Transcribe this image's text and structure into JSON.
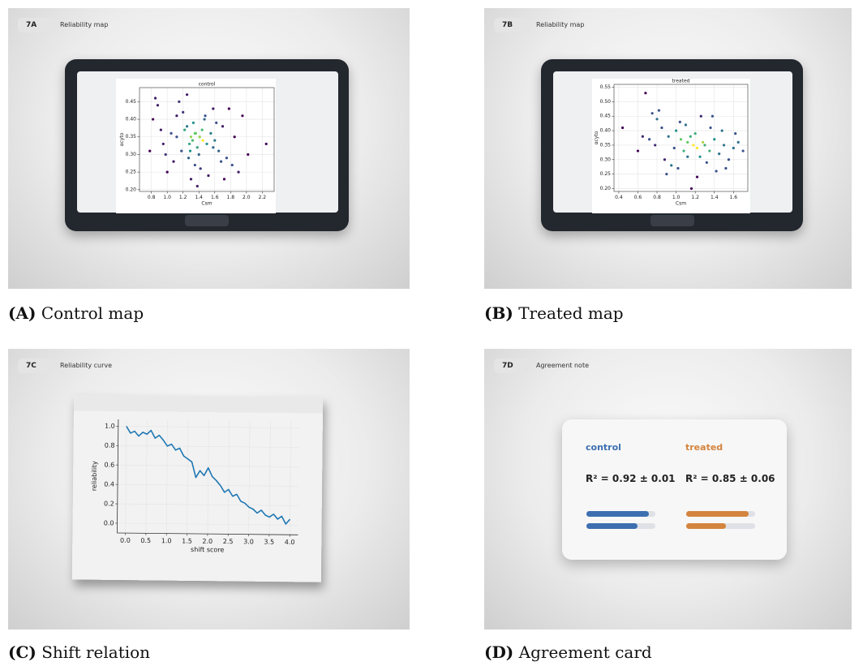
{
  "panels": [
    {
      "tag": "7A",
      "title": "Reliability map",
      "caption_label": "(A)",
      "caption": "Control map",
      "chart_data": {
        "type": "scatter",
        "title": "control",
        "x_label": "Csm",
        "y_label": "αcyto",
        "colormap": "viridis",
        "grid": true,
        "x": [
          1.32,
          1.41,
          1.28,
          1.36,
          1.45,
          1.22,
          1.38,
          1.3,
          1.5,
          1.25,
          1.18,
          1.55,
          1.4,
          1.33,
          1.27,
          1.6,
          1.12,
          1.47,
          1.35,
          1.2,
          1.65,
          1.05,
          1.7,
          0.95,
          1.75,
          0.88,
          1.82,
          0.82,
          1.9,
          0.78,
          2.02,
          2.25,
          1.15,
          1.58,
          1.42,
          1.08,
          1.62,
          1.3,
          1.48,
          1.38,
          0.92,
          1.78,
          1.0,
          1.68,
          1.25,
          1.52,
          1.85,
          0.85,
          1.12,
          1.58,
          1.35,
          1.44,
          1.29,
          1.95,
          0.98,
          1.72
        ],
        "values": [
          0.34,
          0.35,
          0.33,
          0.36,
          0.34,
          0.37,
          0.32,
          0.35,
          0.33,
          0.38,
          0.31,
          0.36,
          0.3,
          0.39,
          0.29,
          0.34,
          0.35,
          0.4,
          0.27,
          0.42,
          0.31,
          0.36,
          0.38,
          0.33,
          0.29,
          0.44,
          0.27,
          0.4,
          0.25,
          0.31,
          0.3,
          0.33,
          0.45,
          0.43,
          0.26,
          0.28,
          0.39,
          0.23,
          0.41,
          0.21,
          0.37,
          0.43,
          0.25,
          0.28,
          0.47,
          0.24,
          0.35,
          0.46,
          0.41,
          0.32,
          0.36,
          0.37,
          0.31,
          0.41,
          0.3,
          0.23
        ],
        "xlim": [
          0.65,
          2.35
        ],
        "ylim": [
          0.195,
          0.49
        ],
        "xticks": [
          0.8,
          {
            "value": 1.0,
            "label": "1.0"
          },
          1.2,
          1.4,
          1.6,
          1.8,
          {
            "value": 2.0,
            "label": "2.0"
          },
          2.2
        ],
        "yticks": [
          {
            "value": 0.2,
            "label": "0.20"
          },
          0.25,
          {
            "value": 0.3,
            "label": "0.30"
          },
          0.35,
          {
            "value": 0.4,
            "label": "0.40"
          },
          0.45
        ]
      }
    },
    {
      "tag": "7B",
      "title": "Reliability map",
      "caption_label": "(B)",
      "caption": "Treated map",
      "chart_data": {
        "type": "scatter",
        "title": "treated",
        "x_label": "Csm",
        "y_label": "αcyto",
        "colormap": "viridis",
        "grid": true,
        "x": [
          1.12,
          1.18,
          1.05,
          1.22,
          1.15,
          1.28,
          1.08,
          1.2,
          1.3,
          1.0,
          1.35,
          0.98,
          1.25,
          1.1,
          1.4,
          0.92,
          1.45,
          0.85,
          1.5,
          0.8,
          1.55,
          0.72,
          1.6,
          0.65,
          0.68,
          0.75,
          1.38,
          0.44,
          1.65,
          1.02,
          1.32,
          0.88,
          1.48,
          0.95,
          1.7,
          0.78,
          1.42,
          1.16,
          0.6,
          1.26,
          1.52,
          1.04,
          1.36,
          0.9,
          1.62,
          1.12,
          1.22,
          0.82
        ],
        "values": [
          0.36,
          0.35,
          0.37,
          0.34,
          0.38,
          0.36,
          0.33,
          0.39,
          0.35,
          0.4,
          0.33,
          0.34,
          0.31,
          0.42,
          0.37,
          0.38,
          0.32,
          0.41,
          0.35,
          0.44,
          0.3,
          0.37,
          0.34,
          0.38,
          0.53,
          0.46,
          0.45,
          0.41,
          0.36,
          0.27,
          0.29,
          0.3,
          0.4,
          0.28,
          0.33,
          0.35,
          0.26,
          0.2,
          0.33,
          0.45,
          0.27,
          0.43,
          0.41,
          0.25,
          0.39,
          0.31,
          0.24,
          0.47
        ],
        "xlim": [
          0.35,
          1.75
        ],
        "ylim": [
          0.19,
          0.56
        ],
        "xticks": [
          0.4,
          0.6,
          0.8,
          {
            "value": 1.0,
            "label": "1.0"
          },
          1.2,
          1.4,
          1.6
        ],
        "yticks": [
          {
            "value": 0.2,
            "label": "0.20"
          },
          0.25,
          {
            "value": 0.3,
            "label": "0.30"
          },
          0.35,
          {
            "value": 0.4,
            "label": "0.40"
          },
          0.45,
          {
            "value": 0.5,
            "label": "0.50"
          },
          0.55
        ]
      }
    },
    {
      "tag": "7C",
      "title": "Reliability curve",
      "caption_label": "(C)",
      "caption": "Shift relation",
      "chart_data": {
        "type": "line",
        "x_label": "shift score",
        "y_label": "reliability",
        "color": "#1f77b4",
        "grid": true,
        "x": [
          0,
          0.1,
          0.2,
          0.3,
          0.4,
          0.5,
          0.6,
          0.7,
          0.8,
          0.9,
          1.0,
          1.1,
          1.2,
          1.3,
          1.4,
          1.5,
          1.6,
          1.7,
          1.8,
          1.9,
          2.0,
          2.1,
          2.2,
          2.3,
          2.4,
          2.5,
          2.6,
          2.7,
          2.8,
          2.9,
          3.0,
          3.1,
          3.2,
          3.3,
          3.4,
          3.5,
          3.6,
          3.7,
          3.8,
          3.9,
          4.0
        ],
        "values": [
          1.0,
          0.93,
          0.95,
          0.9,
          0.94,
          0.92,
          0.96,
          0.88,
          0.91,
          0.86,
          0.8,
          0.82,
          0.76,
          0.78,
          0.7,
          0.67,
          0.64,
          0.48,
          0.55,
          0.5,
          0.58,
          0.49,
          0.45,
          0.4,
          0.33,
          0.36,
          0.29,
          0.31,
          0.24,
          0.22,
          0.18,
          0.16,
          0.12,
          0.15,
          0.1,
          0.08,
          0.11,
          0.06,
          0.09,
          0.01,
          0.06
        ],
        "xlim": [
          -0.2,
          4.2
        ],
        "ylim": [
          -0.1,
          1.07
        ],
        "xticks": [
          {
            "value": 0,
            "label": "0.0"
          },
          0.5,
          {
            "value": 1,
            "label": "1.0"
          },
          1.5,
          {
            "value": 2,
            "label": "2.0"
          },
          2.5,
          {
            "value": 3,
            "label": "3.0"
          },
          3.5,
          {
            "value": 4,
            "label": "4.0"
          }
        ],
        "yticks": [
          {
            "value": 0,
            "label": "0.0"
          },
          0.2,
          0.4,
          0.6,
          0.8,
          {
            "value": 1,
            "label": "1.0"
          }
        ]
      }
    },
    {
      "tag": "7D",
      "title": "Agreement note",
      "caption_label": "(D)",
      "caption": "Agreement card",
      "card": {
        "xlim": [
          0,
          1
        ],
        "groups": [
          {
            "name": "control",
            "color": "#3d6fb0",
            "stat": "R² = 0.92 ± 0.01",
            "bars": [
              0.9,
              0.74
            ]
          },
          {
            "name": "treated",
            "color": "#d4843e",
            "stat": "R² = 0.85 ± 0.06",
            "bars": [
              0.9,
              0.58
            ]
          }
        ]
      }
    }
  ]
}
